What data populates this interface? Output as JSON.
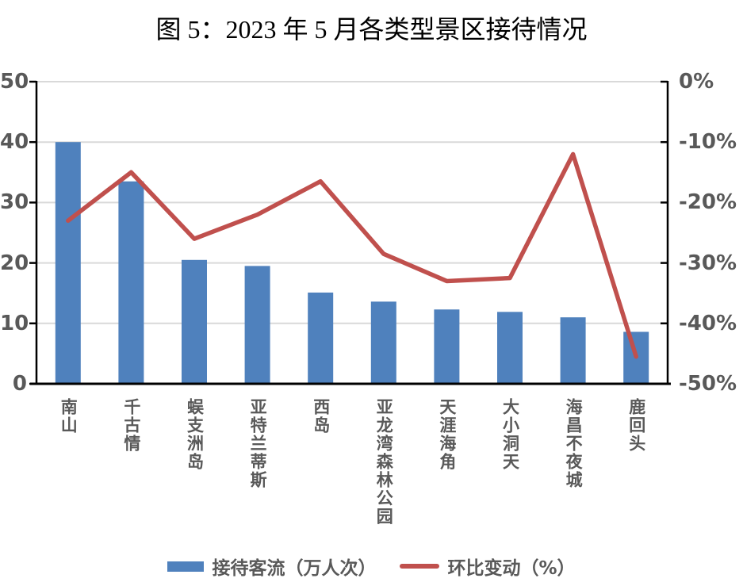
{
  "title": "图 5：2023 年 5 月各类型景区接待情况",
  "legend": {
    "bar_label": "接待客流（万人次）",
    "line_label": "环比变动（%）"
  },
  "colors": {
    "bar": "#4f81bd",
    "line": "#c0504d",
    "grid": "#d9d9d9",
    "axis": "#000000",
    "tick_text": "#595959",
    "title_text": "#000000"
  },
  "chart_data": {
    "type": "bar",
    "subtype": "bar+line combo, dual axis",
    "title": "图 5：2023 年 5 月各类型景区接待情况",
    "categories": [
      "南山",
      "千古情",
      "蜈支洲岛",
      "亚特兰蒂斯",
      "西岛",
      "亚龙湾森林公园",
      "天涯海角",
      "大小洞天",
      "海昌不夜城",
      "鹿回头"
    ],
    "series": [
      {
        "name": "接待客流（万人次）",
        "type": "bar",
        "axis": "left",
        "color": "#4f81bd",
        "values": [
          40.0,
          33.5,
          20.5,
          19.5,
          15.1,
          13.6,
          12.3,
          11.9,
          11.0,
          8.6
        ]
      },
      {
        "name": "环比变动（%）",
        "type": "line",
        "axis": "right",
        "color": "#c0504d",
        "values": [
          -23,
          -15,
          -26,
          -22,
          -16.5,
          -28.5,
          -33,
          -32.5,
          -12,
          -45.5
        ]
      }
    ],
    "left_axis": {
      "min": 0,
      "max": 50,
      "ticks": [
        {
          "label": "50",
          "value": 50
        },
        {
          "label": "40",
          "value": 40
        },
        {
          "label": "30",
          "value": 30
        },
        {
          "label": "20",
          "value": 20
        },
        {
          "label": "10",
          "value": 10
        },
        {
          "label": "0",
          "value": 0
        }
      ]
    },
    "right_axis": {
      "min": -50,
      "max": 0,
      "ticks": [
        {
          "label": "0%",
          "value": 0
        },
        {
          "label": "-10%",
          "value": -10
        },
        {
          "label": "-20%",
          "value": -20
        },
        {
          "label": "-30%",
          "value": -30
        },
        {
          "label": "-40%",
          "value": -40
        },
        {
          "label": "-50%",
          "value": -50
        }
      ]
    },
    "grid": true,
    "legend_position": "bottom"
  }
}
